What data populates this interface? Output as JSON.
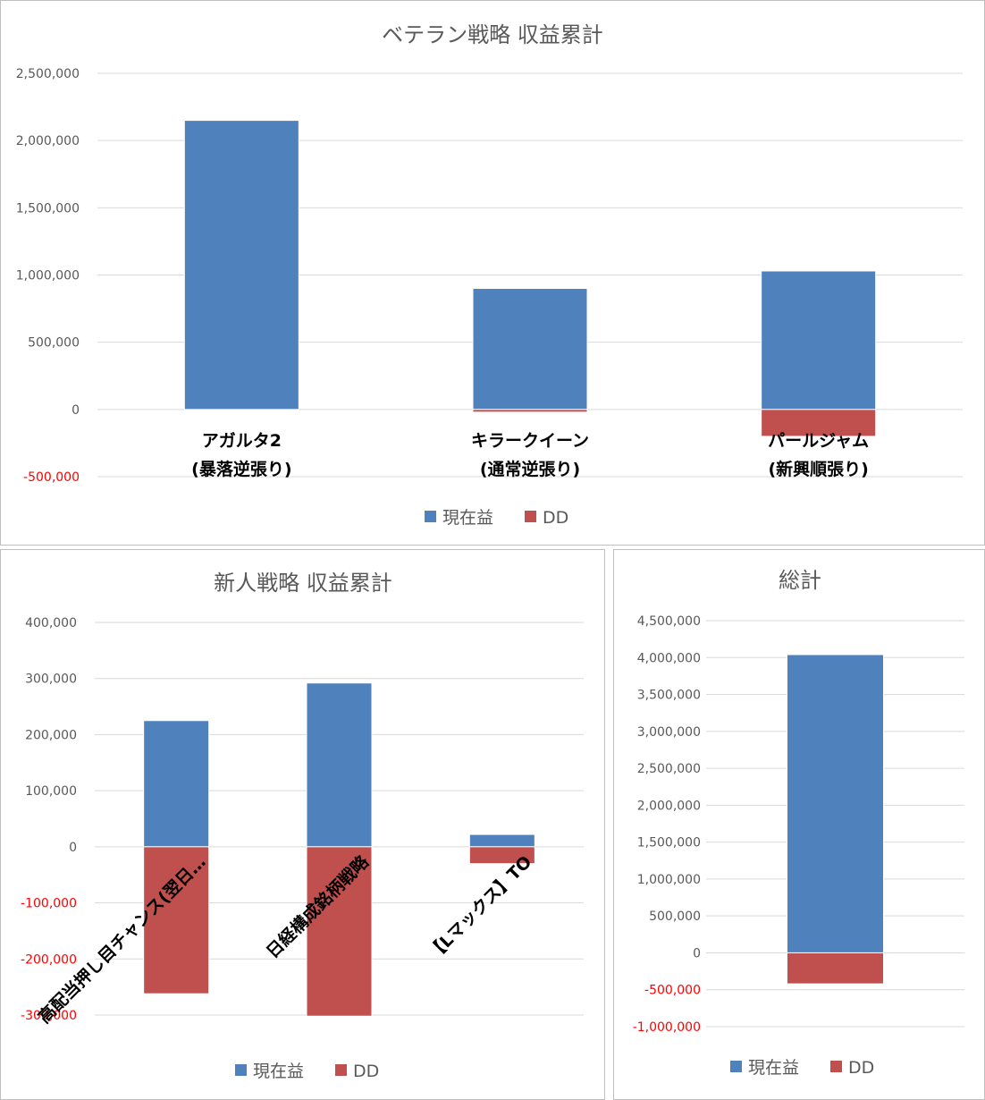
{
  "colors": {
    "profit": "#4f81bd",
    "dd": "#c0504d",
    "grid": "#d9d9d9",
    "text": "#595959",
    "negative_tick": "#ff0000"
  },
  "legend": {
    "profit": "現在益",
    "dd": "DD"
  },
  "chart_data": [
    {
      "type": "bar",
      "stacked": true,
      "title": "ベテラン戦略 収益累計",
      "categories": [
        [
          "アガルタ2",
          "(暴落逆張り)"
        ],
        [
          "キラークイーン",
          "(通常逆張り)"
        ],
        [
          "パールジャム",
          "(新興順張り)"
        ]
      ],
      "series": [
        {
          "name": "現在益",
          "values": [
            2150000,
            900000,
            1030000
          ]
        },
        {
          "name": "DD",
          "values": [
            0,
            -20000,
            -200000
          ]
        }
      ],
      "ylim": [
        -500000,
        2500000
      ],
      "yticks": [
        "2,500,000",
        "2,000,000",
        "1,500,000",
        "1,000,000",
        "500,000",
        "0",
        "-500,000"
      ],
      "ytick_values": [
        2500000,
        2000000,
        1500000,
        1000000,
        500000,
        0,
        -500000
      ],
      "grid": true,
      "legend_position": "bottom"
    },
    {
      "type": "bar",
      "stacked": true,
      "title": "新人戦略 収益累計",
      "categories": [
        [
          "高配当押し目チャンス(翌日…"
        ],
        [
          "日経構成銘柄戦略"
        ],
        [
          "【Lマックス】TO"
        ]
      ],
      "series": [
        {
          "name": "現在益",
          "values": [
            225000,
            292000,
            22000
          ]
        },
        {
          "name": "DD",
          "values": [
            -262000,
            -302000,
            -30000
          ]
        }
      ],
      "ylim": [
        -300000,
        400000
      ],
      "yticks": [
        "400,000",
        "300,000",
        "200,000",
        "100,000",
        "0",
        "-100,000",
        "-200,000",
        "-300,000"
      ],
      "ytick_values": [
        400000,
        300000,
        200000,
        100000,
        0,
        -100000,
        -200000,
        -300000
      ],
      "grid": true,
      "legend_position": "bottom"
    },
    {
      "type": "bar",
      "stacked": true,
      "title": "総計",
      "categories": [
        [
          ""
        ]
      ],
      "series": [
        {
          "name": "現在益",
          "values": [
            4040000
          ]
        },
        {
          "name": "DD",
          "values": [
            -420000
          ]
        }
      ],
      "ylim": [
        -1000000,
        4500000
      ],
      "yticks": [
        "4,500,000",
        "4,000,000",
        "3,500,000",
        "3,000,000",
        "2,500,000",
        "2,000,000",
        "1,500,000",
        "1,000,000",
        "500,000",
        "0",
        "-500,000",
        "-1,000,000"
      ],
      "ytick_values": [
        4500000,
        4000000,
        3500000,
        3000000,
        2500000,
        2000000,
        1500000,
        1000000,
        500000,
        0,
        -500000,
        -1000000
      ],
      "grid": true,
      "legend_position": "bottom"
    }
  ]
}
